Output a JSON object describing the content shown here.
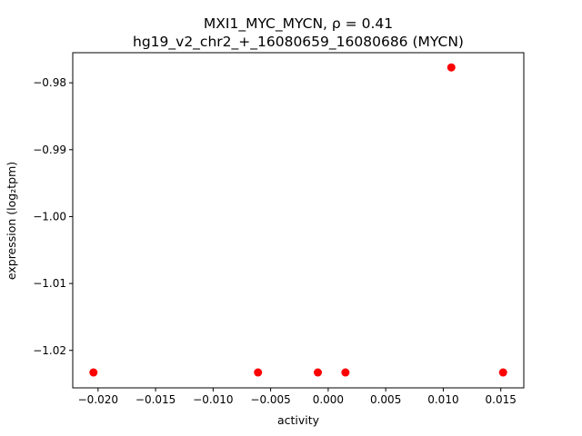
{
  "chart_data": {
    "type": "scatter",
    "title_line1": "MXI1_MYC_MYCN, ρ = 0.41",
    "title_line2": "hg19_v2_chr2_+_16080659_16080686 (MYCN)",
    "xlabel": "activity",
    "ylabel": "expression (log₂tpm)",
    "xlim": [
      -0.0222,
      0.017
    ],
    "ylim": [
      -1.0256,
      -0.9755
    ],
    "xticks": [
      -0.02,
      -0.015,
      -0.01,
      -0.005,
      0.0,
      0.005,
      0.01,
      0.015
    ],
    "xtick_labels": [
      "−0.020",
      "−0.015",
      "−0.010",
      "−0.005",
      "0.000",
      "0.005",
      "0.010",
      "0.015"
    ],
    "yticks": [
      -0.98,
      -0.99,
      -1.0,
      -1.01,
      -1.02
    ],
    "ytick_labels": [
      "−0.98",
      "−0.99",
      "−1.00",
      "−1.01",
      "−1.02"
    ],
    "grid": false,
    "marker_color": "#ff0000",
    "points": [
      {
        "x": -0.0204,
        "y": -1.0233
      },
      {
        "x": -0.0061,
        "y": -1.0233
      },
      {
        "x": -0.0009,
        "y": -1.0233
      },
      {
        "x": 0.0015,
        "y": -1.0233
      },
      {
        "x": 0.0107,
        "y": -0.9777
      },
      {
        "x": 0.0152,
        "y": -1.0233
      }
    ]
  }
}
